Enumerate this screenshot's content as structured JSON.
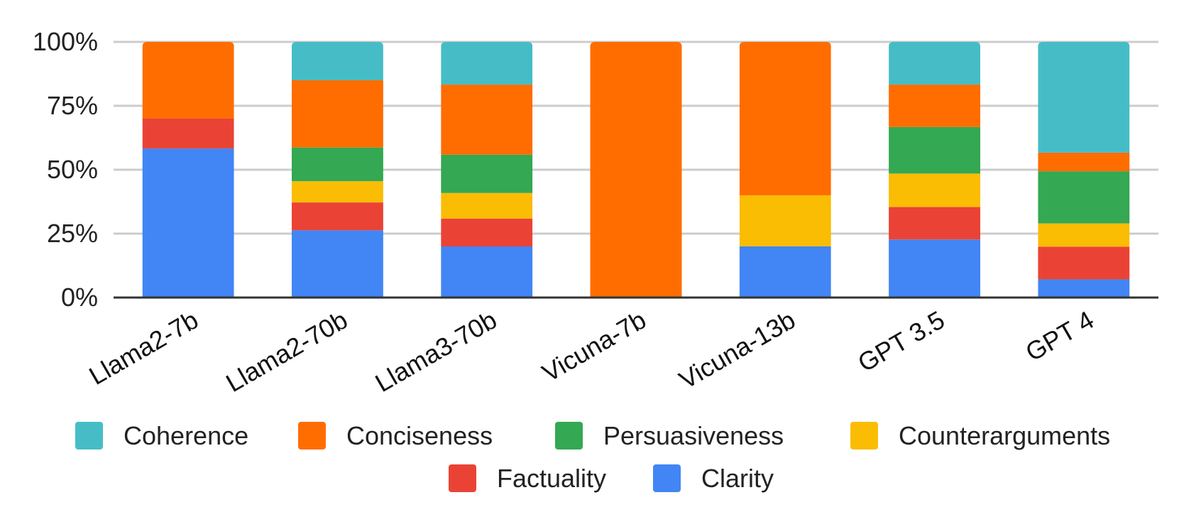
{
  "chart_data": {
    "type": "bar",
    "stacked": true,
    "normalized": true,
    "title": "",
    "xlabel": "",
    "ylabel": "",
    "ylim": [
      0,
      100
    ],
    "yticks": [
      "0%",
      "25%",
      "50%",
      "75%",
      "100%"
    ],
    "ytick_values": [
      0,
      25,
      50,
      75,
      100
    ],
    "categories": [
      "Llama2-7b",
      "Llama2-70b",
      "Llama3-70b",
      "Vicuna-7b",
      "Vicuna-13b",
      "GPT 3.5",
      "GPT 4"
    ],
    "series": [
      {
        "name": "Clarity",
        "color": "#4285f4",
        "values": [
          58.3,
          26.3,
          20.0,
          0,
          20.0,
          22.7,
          7.1
        ]
      },
      {
        "name": "Factuality",
        "color": "#ea4335",
        "values": [
          11.7,
          10.9,
          10.9,
          0,
          0,
          12.7,
          12.8
        ]
      },
      {
        "name": "Counterarguments",
        "color": "#fbbc04",
        "values": [
          0,
          8.3,
          10.0,
          0,
          20.0,
          13.1,
          9.1
        ]
      },
      {
        "name": "Persuasiveness",
        "color": "#34a853",
        "values": [
          0,
          13.2,
          15.0,
          0,
          0,
          18.2,
          20.4
        ]
      },
      {
        "name": "Conciseness",
        "color": "#ff6d01",
        "values": [
          30.0,
          26.3,
          27.4,
          100,
          60.0,
          16.6,
          7.3
        ]
      },
      {
        "name": "Coherence",
        "color": "#46bdc6",
        "values": [
          0,
          15.0,
          16.7,
          0,
          0,
          16.7,
          43.3
        ]
      }
    ],
    "legend": {
      "position": "bottom",
      "order": [
        "Coherence",
        "Conciseness",
        "Persuasiveness",
        "Counterarguments",
        "Factuality",
        "Clarity"
      ]
    },
    "grid": true
  }
}
